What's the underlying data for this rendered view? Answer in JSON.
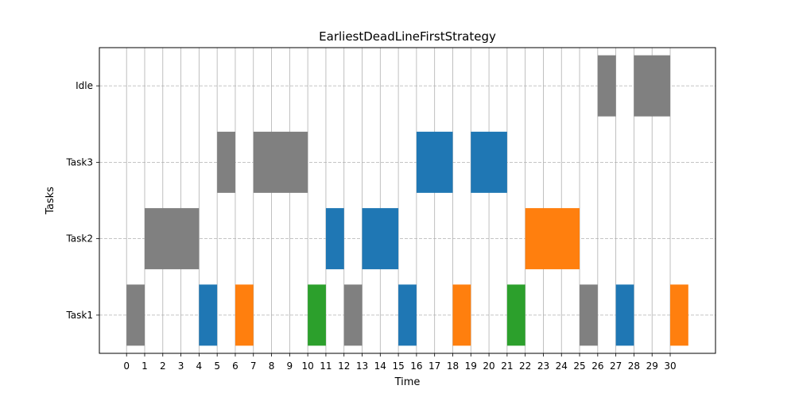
{
  "chart_data": {
    "type": "gantt",
    "title": "EarliestDeadLineFirstStrategy",
    "xlabel": "Time",
    "ylabel": "Tasks",
    "xlim": [
      -1.5,
      32.5
    ],
    "x_ticks": [
      0,
      1,
      2,
      3,
      4,
      5,
      6,
      7,
      8,
      9,
      10,
      11,
      12,
      13,
      14,
      15,
      16,
      17,
      18,
      19,
      20,
      21,
      22,
      23,
      24,
      25,
      26,
      27,
      28,
      29,
      30
    ],
    "categories": [
      "Task1",
      "Task2",
      "Task3",
      "Idle"
    ],
    "bar_height": 0.8,
    "grid": {
      "x": "solid",
      "y": "dashed"
    },
    "colors": {
      "gray": "#808080",
      "blue": "#1f77b4",
      "orange": "#ff7f0e",
      "green": "#2ca02c"
    },
    "segments": [
      {
        "task": "Task1",
        "start": 0,
        "end": 1,
        "color": "gray"
      },
      {
        "task": "Task2",
        "start": 1,
        "end": 4,
        "color": "gray"
      },
      {
        "task": "Task1",
        "start": 4,
        "end": 5,
        "color": "blue"
      },
      {
        "task": "Task3",
        "start": 5,
        "end": 6,
        "color": "gray"
      },
      {
        "task": "Task1",
        "start": 6,
        "end": 7,
        "color": "orange"
      },
      {
        "task": "Task3",
        "start": 7,
        "end": 10,
        "color": "gray"
      },
      {
        "task": "Task1",
        "start": 10,
        "end": 11,
        "color": "green"
      },
      {
        "task": "Task2",
        "start": 11,
        "end": 12,
        "color": "blue"
      },
      {
        "task": "Task1",
        "start": 12,
        "end": 13,
        "color": "gray"
      },
      {
        "task": "Task2",
        "start": 13,
        "end": 15,
        "color": "blue"
      },
      {
        "task": "Task1",
        "start": 15,
        "end": 16,
        "color": "blue"
      },
      {
        "task": "Task3",
        "start": 16,
        "end": 18,
        "color": "blue"
      },
      {
        "task": "Task1",
        "start": 18,
        "end": 19,
        "color": "orange"
      },
      {
        "task": "Task3",
        "start": 19,
        "end": 21,
        "color": "blue"
      },
      {
        "task": "Task1",
        "start": 21,
        "end": 22,
        "color": "green"
      },
      {
        "task": "Task2",
        "start": 22,
        "end": 25,
        "color": "orange"
      },
      {
        "task": "Task1",
        "start": 25,
        "end": 26,
        "color": "gray"
      },
      {
        "task": "Idle",
        "start": 26,
        "end": 27,
        "color": "gray"
      },
      {
        "task": "Task1",
        "start": 27,
        "end": 28,
        "color": "blue"
      },
      {
        "task": "Idle",
        "start": 28,
        "end": 30,
        "color": "gray"
      },
      {
        "task": "Task1",
        "start": 30,
        "end": 31,
        "color": "orange"
      }
    ]
  }
}
